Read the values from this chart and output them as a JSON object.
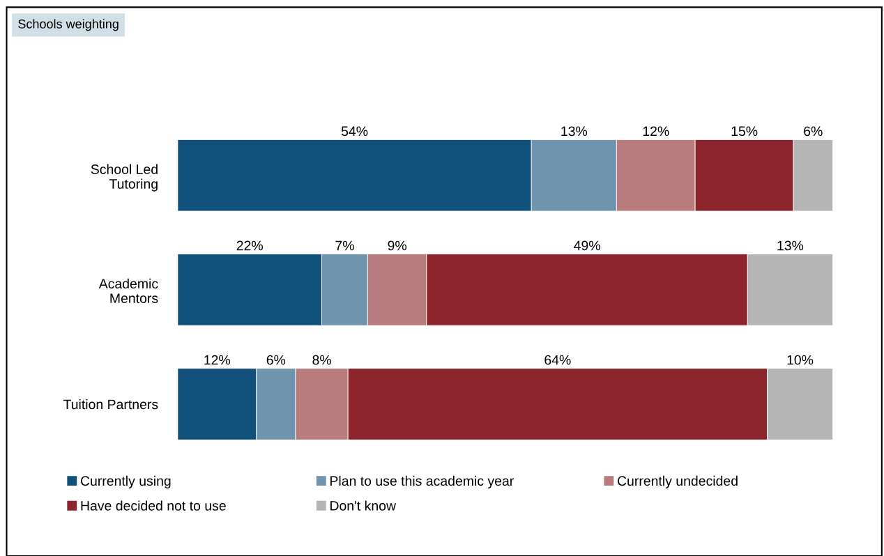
{
  "chart_data": {
    "type": "bar",
    "orientation": "horizontal",
    "stacked": true,
    "title": "Schools weighting",
    "categories": [
      "School Led\nTutoring",
      "Academic\nMentors",
      "Tuition Partners"
    ],
    "series": [
      {
        "name": "Currently using",
        "color": "#11507a",
        "values": [
          54,
          22,
          12
        ],
        "value_labels": [
          "54%",
          "22%",
          "12%"
        ]
      },
      {
        "name": "Plan to use this academic year",
        "color": "#7094ad",
        "values": [
          13,
          7,
          6
        ],
        "value_labels": [
          "13%",
          "7%",
          "6%"
        ]
      },
      {
        "name": "Currently undecided",
        "color": "#b87c7c",
        "values": [
          12,
          9,
          8
        ],
        "value_labels": [
          "12%",
          "9%",
          "8%"
        ]
      },
      {
        "name": "Have decided not to use",
        "color": "#8b252b",
        "values": [
          15,
          49,
          64
        ],
        "value_labels": [
          "15%",
          "49%",
          "64%"
        ]
      },
      {
        "name": "Don't know",
        "color": "#b5b5b5",
        "values": [
          6,
          13,
          10
        ],
        "value_labels": [
          "6%",
          "13%",
          "10%"
        ]
      }
    ],
    "legend": "bottom",
    "grid": false
  }
}
